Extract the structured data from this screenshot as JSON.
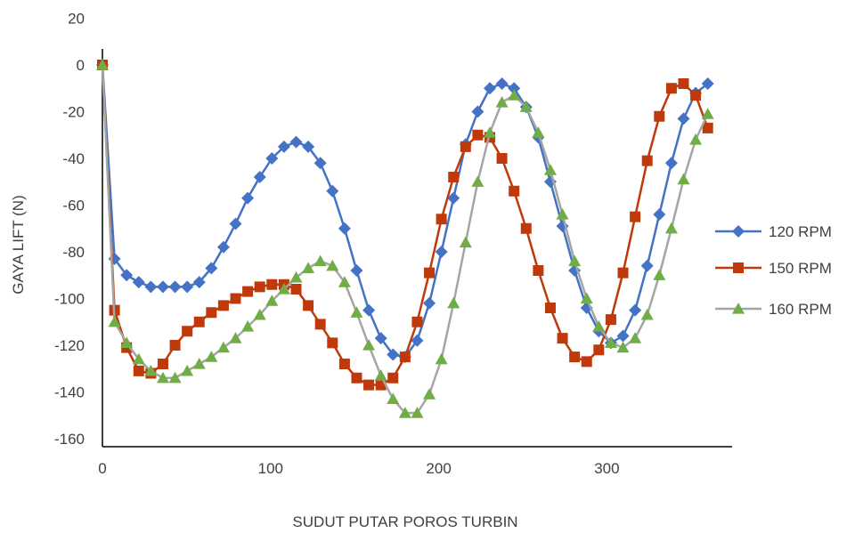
{
  "chart_data": {
    "type": "line",
    "xlabel": "SUDUT PUTAR POROS TURBIN",
    "ylabel": "GAYA LIFT (N)",
    "xlim": [
      0,
      380
    ],
    "ylim": [
      -160,
      20
    ],
    "x_ticks": [
      "0",
      "100",
      "200",
      "300"
    ],
    "y_ticks": [
      "20",
      "0",
      "-20",
      "-40",
      "-60",
      "-80",
      "-100",
      "-120",
      "-140",
      "-160"
    ],
    "legend_position": "right",
    "grid": false,
    "series": [
      {
        "name": "120 RPM",
        "color": "#4472C4",
        "marker": "diamond",
        "x": [
          0,
          7.2,
          14.4,
          21.6,
          28.8,
          36,
          43.2,
          50.4,
          57.6,
          64.8,
          72,
          79.2,
          86.4,
          93.6,
          100.8,
          108,
          115.2,
          122.4,
          129.6,
          136.8,
          144,
          151.2,
          158.4,
          165.6,
          172.8,
          180,
          187.2,
          194.4,
          201.6,
          208.8,
          216,
          223.2,
          230.4,
          237.6,
          244.8,
          252,
          259.2,
          266.4,
          273.6,
          280.8,
          288,
          295.2,
          302.4,
          309.6,
          316.8,
          324,
          331.2,
          338.4,
          345.6,
          352.8,
          360
        ],
        "values": [
          0,
          -83,
          -90,
          -93,
          -95,
          -95,
          -95,
          -95,
          -93,
          -87,
          -78,
          -68,
          -57,
          -48,
          -40,
          -35,
          -33,
          -35,
          -42,
          -54,
          -70,
          -88,
          -105,
          -117,
          -124,
          -125,
          -118,
          -102,
          -80,
          -57,
          -34,
          -20,
          -10,
          -8,
          -10,
          -18,
          -31,
          -50,
          -69,
          -88,
          -104,
          -114,
          -119,
          -116,
          -105,
          -86,
          -64,
          -42,
          -23,
          -12,
          -8
        ]
      },
      {
        "name": "150 RPM",
        "color": "#C0390B",
        "marker": "square",
        "x": [
          0,
          7.2,
          14.4,
          21.6,
          28.8,
          36,
          43.2,
          50.4,
          57.6,
          64.8,
          72,
          79.2,
          86.4,
          93.6,
          100.8,
          108,
          115.2,
          122.4,
          129.6,
          136.8,
          144,
          151.2,
          158.4,
          165.6,
          172.8,
          180,
          187.2,
          194.4,
          201.6,
          208.8,
          216,
          223.2,
          230.4,
          237.6,
          244.8,
          252,
          259.2,
          266.4,
          273.6,
          280.8,
          288,
          295.2,
          302.4,
          309.6,
          316.8,
          324,
          331.2,
          338.4,
          345.6,
          352.8,
          360
        ],
        "values": [
          0,
          -105,
          -121,
          -131,
          -132,
          -128,
          -120,
          -114,
          -110,
          -106,
          -103,
          -100,
          -97,
          -95,
          -94,
          -94,
          -96,
          -103,
          -111,
          -119,
          -128,
          -134,
          -137,
          -137,
          -134,
          -125,
          -110,
          -89,
          -66,
          -48,
          -35,
          -30,
          -31,
          -40,
          -54,
          -70,
          -88,
          -104,
          -117,
          -125,
          -127,
          -122,
          -109,
          -89,
          -65,
          -41,
          -22,
          -10,
          -8,
          -13,
          -27
        ]
      },
      {
        "name": "160 RPM",
        "color": "#A5A5A5",
        "marker": "triangle",
        "x": [
          0,
          7.2,
          14.4,
          21.6,
          28.8,
          36,
          43.2,
          50.4,
          57.6,
          64.8,
          72,
          79.2,
          86.4,
          93.6,
          100.8,
          108,
          115.2,
          122.4,
          129.6,
          136.8,
          144,
          151.2,
          158.4,
          165.6,
          172.8,
          180,
          187.2,
          194.4,
          201.6,
          208.8,
          216,
          223.2,
          230.4,
          237.6,
          244.8,
          252,
          259.2,
          266.4,
          273.6,
          280.8,
          288,
          295.2,
          302.4,
          309.6,
          316.8,
          324,
          331.2,
          338.4,
          345.6,
          352.8,
          360
        ],
        "values": [
          0,
          -110,
          -119,
          -126,
          -131,
          -134,
          -134,
          -131,
          -128,
          -125,
          -121,
          -117,
          -112,
          -107,
          -101,
          -96,
          -91,
          -87,
          -84,
          -86,
          -93,
          -106,
          -120,
          -133,
          -143,
          -149,
          -149,
          -141,
          -126,
          -102,
          -76,
          -50,
          -29,
          -16,
          -13,
          -18,
          -29,
          -45,
          -64,
          -84,
          -100,
          -112,
          -119,
          -121,
          -117,
          -107,
          -90,
          -70,
          -49,
          -32,
          -21
        ]
      }
    ]
  }
}
